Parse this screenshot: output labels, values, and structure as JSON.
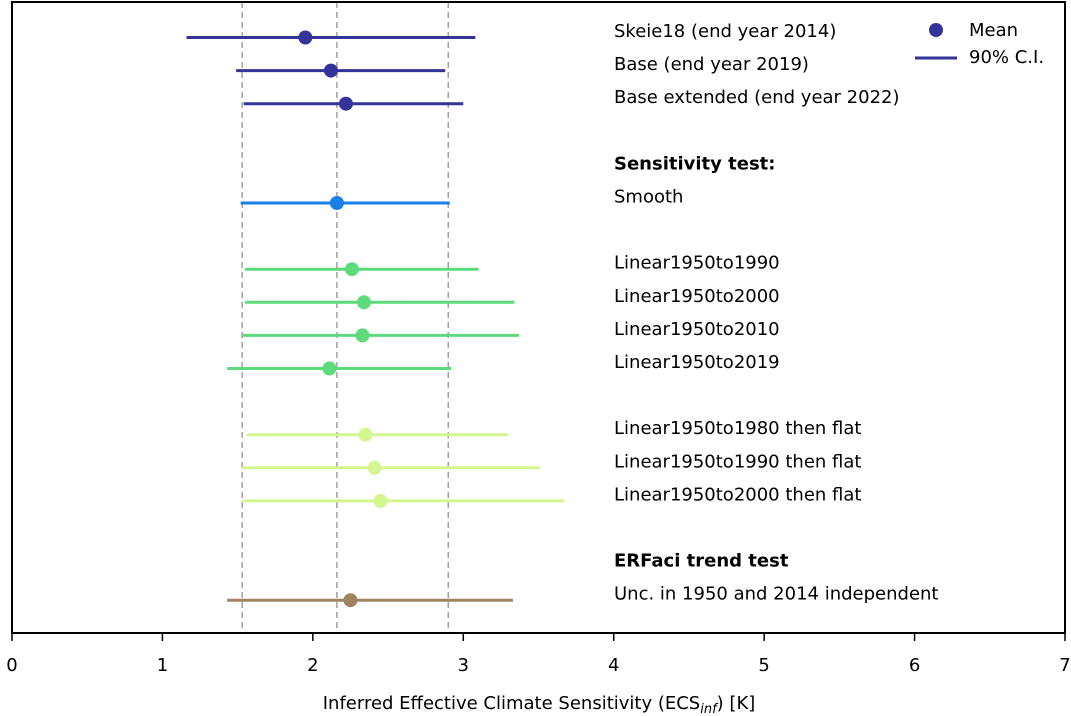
{
  "chart_data": {
    "type": "errorbar",
    "xlabel_main": "Inferred Effective Climate Sensitivity (ECS",
    "xlabel_sub": "inf",
    "xlabel_tail": ") [K]",
    "xlim": [
      0,
      7
    ],
    "xticks": [
      "0",
      "1",
      "2",
      "3",
      "4",
      "5",
      "6",
      "7"
    ],
    "grid": false,
    "reference_lines": [
      1.53,
      2.16,
      2.9
    ],
    "legend": {
      "placement": "top-right",
      "mean_label": "Mean",
      "ci_label": "90% C.I.",
      "color": "#333399"
    },
    "section_headers": [
      {
        "text": "Sensitivity test:",
        "row": 4
      },
      {
        "text": "ERFaci trend test",
        "row": 16
      }
    ],
    "rows": [
      {
        "label": "Skeie18 (end year 2014)",
        "row": 0,
        "mean": 1.95,
        "lo": 1.16,
        "hi": 3.08,
        "color": "#333399"
      },
      {
        "label": "Base (end year 2019)",
        "row": 1,
        "mean": 2.12,
        "lo": 1.49,
        "hi": 2.88,
        "color": "#333399"
      },
      {
        "label": "Base extended (end year 2022)",
        "row": 2,
        "mean": 2.22,
        "lo": 1.54,
        "hi": 3.0,
        "color": "#333399"
      },
      {
        "label": "Smooth",
        "row": 5,
        "mean": 2.16,
        "lo": 1.52,
        "hi": 2.91,
        "color": "#1a80e6"
      },
      {
        "label": "Linear1950to1990",
        "row": 7,
        "mean": 2.26,
        "lo": 1.55,
        "hi": 3.1,
        "color": "#5ddb7c"
      },
      {
        "label": "Linear1950to2000",
        "row": 8,
        "mean": 2.34,
        "lo": 1.55,
        "hi": 3.34,
        "color": "#5ddb7c"
      },
      {
        "label": "Linear1950to2010",
        "row": 9,
        "mean": 2.33,
        "lo": 1.53,
        "hi": 3.37,
        "color": "#5ddb7c"
      },
      {
        "label": "Linear1950to2019",
        "row": 10,
        "mean": 2.11,
        "lo": 1.43,
        "hi": 2.92,
        "color": "#5ddb7c"
      },
      {
        "label": "Linear1950to1980 then flat",
        "row": 12,
        "mean": 2.35,
        "lo": 1.56,
        "hi": 3.3,
        "color": "#d4f590"
      },
      {
        "label": "Linear1950to1990 then flat",
        "row": 13,
        "mean": 2.41,
        "lo": 1.53,
        "hi": 3.51,
        "color": "#d4f590"
      },
      {
        "label": "Linear1950to2000 then flat",
        "row": 14,
        "mean": 2.45,
        "lo": 1.53,
        "hi": 3.67,
        "color": "#d4f590"
      },
      {
        "label": "Unc. in 1950 and 2014 independent",
        "row": 17,
        "mean": 2.25,
        "lo": 1.43,
        "hi": 3.33,
        "color": "#a08462"
      }
    ]
  }
}
